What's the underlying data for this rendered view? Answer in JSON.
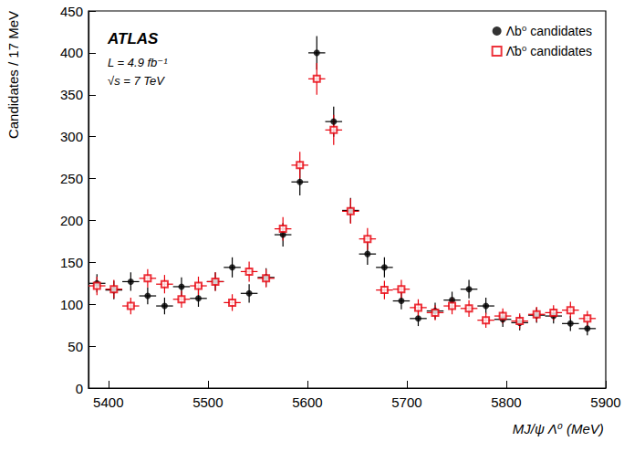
{
  "chart_data": {
    "type": "scatter",
    "x_label": "MJ/ψ Λ⁰ (MeV)",
    "y_label": "Candidates / 17 MeV",
    "annotations": [
      "ATLAS",
      "L = 4.9 fb⁻¹",
      "√s = 7 TeV"
    ],
    "bin_width": 17,
    "x": [
      5388.5,
      5405.5,
      5422.5,
      5439.5,
      5456.5,
      5473.5,
      5490.5,
      5507.5,
      5524.5,
      5541.5,
      5558.5,
      5575.5,
      5592.5,
      5609.5,
      5626.5,
      5643.5,
      5660.5,
      5677.5,
      5694.5,
      5711.5,
      5728.5,
      5745.5,
      5762.5,
      5779.5,
      5796.5,
      5813.5,
      5830.5,
      5847.5,
      5864.5,
      5881.5
    ],
    "series": [
      {
        "name": "Λb⁰ candidates",
        "color": "#000000",
        "marker": "circle",
        "values": [
          125,
          117,
          127,
          110,
          98,
          121,
          107,
          127,
          144,
          113,
          132,
          183,
          246,
          400,
          318,
          212,
          160,
          144,
          104,
          83,
          92,
          105,
          118,
          98,
          82,
          78,
          87,
          86,
          77,
          71
        ],
        "errors": [
          11,
          11,
          11,
          10,
          10,
          11,
          10,
          11,
          12,
          11,
          11,
          14,
          16,
          20,
          18,
          15,
          13,
          12,
          10,
          9,
          10,
          10,
          11,
          10,
          9,
          9,
          9,
          9,
          9,
          8
        ]
      },
      {
        "name": "Λ̄b⁰ candidates",
        "color": "#e8000b",
        "marker": "open_square",
        "values": [
          122,
          118,
          98,
          131,
          124,
          106,
          122,
          127,
          102,
          139,
          131,
          190,
          266,
          369,
          308,
          211,
          178,
          117,
          118,
          96,
          90,
          98,
          95,
          81,
          86,
          80,
          88,
          90,
          93,
          83
        ],
        "errors": [
          11,
          11,
          10,
          11,
          11,
          10,
          11,
          11,
          10,
          12,
          11,
          14,
          16,
          19,
          18,
          15,
          13,
          11,
          11,
          10,
          9,
          10,
          10,
          9,
          9,
          9,
          9,
          9,
          10,
          9
        ]
      }
    ],
    "xlim": [
      5380,
      5900
    ],
    "xticks": [
      5400,
      5500,
      5600,
      5700,
      5800,
      5900
    ],
    "ylim": [
      0,
      450
    ],
    "yticks": [
      0,
      50,
      100,
      150,
      200,
      250,
      300,
      350,
      400,
      450
    ],
    "grid": false,
    "legend": "top-right"
  }
}
